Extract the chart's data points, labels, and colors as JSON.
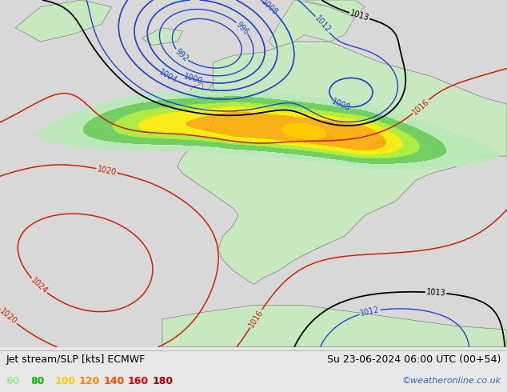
{
  "title_left": "Jet stream/SLP [kts] ECMWF",
  "title_right": "Su 23-06-2024 06:00 UTC (00+54)",
  "watermark": "©weatheronline.co.uk",
  "legend_values": [
    "60",
    "80",
    "100",
    "120",
    "140",
    "160",
    "180"
  ],
  "legend_colors": [
    "#90ee90",
    "#00bb00",
    "#ffcc00",
    "#ff8800",
    "#ff4400",
    "#dd0000",
    "#aa0000"
  ],
  "sea_color": "#d8d8d8",
  "land_color": "#c8e8c0",
  "jet_colors": [
    "#b0e8b0",
    "#66cc66",
    "#aaee44",
    "#ffee00",
    "#ffaa00"
  ],
  "contour_blue": "#2244cc",
  "contour_red": "#cc2200",
  "contour_black": "#000000",
  "footer_bg": "#e8e8e8",
  "title_fontsize": 9,
  "legend_fontsize": 9,
  "label_fontsize": 7
}
